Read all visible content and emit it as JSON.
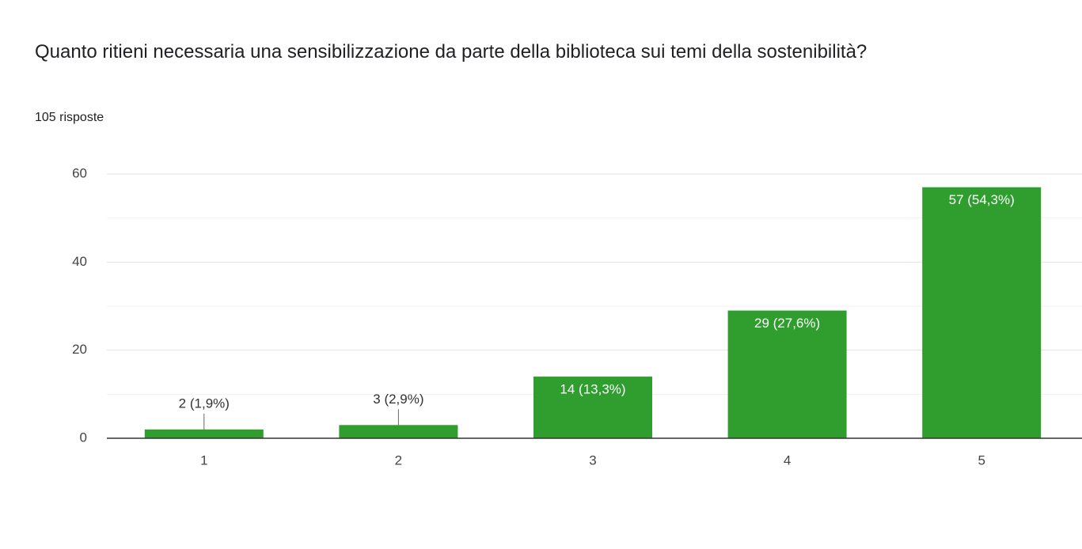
{
  "chart_data": {
    "type": "bar",
    "title": "Quanto ritieni necessaria una sensibilizzazione da parte della biblioteca sui temi della sostenibilità?",
    "subtitle": "105 risposte",
    "categories": [
      "1",
      "2",
      "3",
      "4",
      "5"
    ],
    "values": [
      2,
      3,
      14,
      29,
      57
    ],
    "value_labels": [
      "2 (1,9%)",
      "3 (2,9%)",
      "14 (13,3%)",
      "29 (27,6%)",
      "57 (54,3%)"
    ],
    "color": "#2f9e2f",
    "ylim": [
      0,
      60
    ],
    "yticks": [
      0,
      20,
      40,
      60
    ],
    "minor_yticks": [
      10,
      30,
      50
    ],
    "grid": true
  }
}
